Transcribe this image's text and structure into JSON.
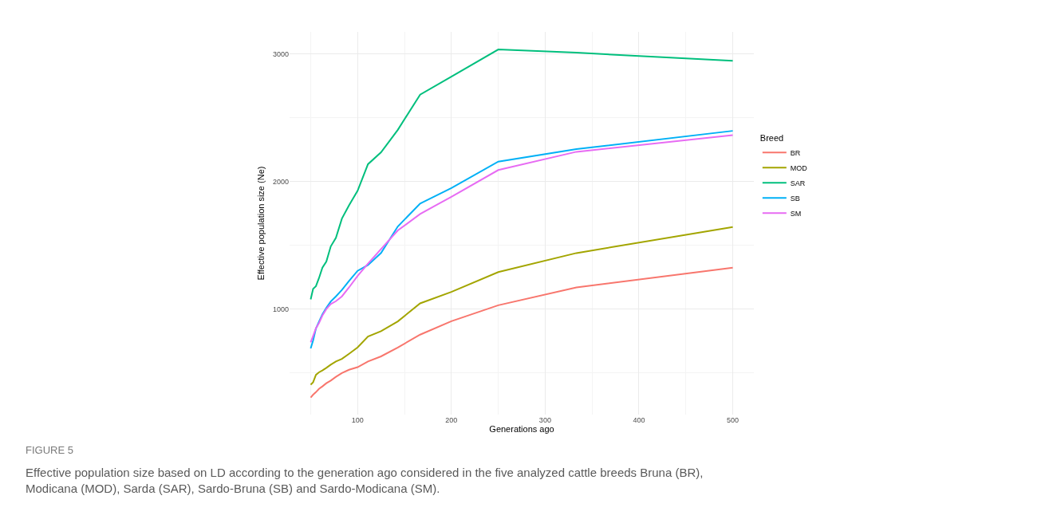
{
  "chart_data": {
    "type": "line",
    "xlabel": "Generations ago",
    "ylabel": "Effective population size (Ne)",
    "legend_title": "Breed",
    "x": [
      50,
      52.6,
      55.6,
      58.8,
      62.5,
      66.7,
      71.4,
      76.9,
      83.3,
      90.9,
      100,
      111.1,
      125,
      142.9,
      166.7,
      200,
      250,
      333.3,
      500
    ],
    "series": [
      {
        "name": "BR",
        "color": "#f8766d",
        "values": [
          308,
          330,
          350,
          375,
          395,
          420,
          440,
          470,
          500,
          525,
          545,
          590,
          630,
          700,
          800,
          905,
          1030,
          1170,
          1325
        ]
      },
      {
        "name": "MOD",
        "color": "#a3a500",
        "values": [
          408,
          427,
          485,
          505,
          520,
          540,
          565,
          590,
          610,
          650,
          700,
          786,
          827,
          904,
          1045,
          1135,
          1290,
          1439,
          1643
        ]
      },
      {
        "name": "SAR",
        "color": "#00bf7d",
        "values": [
          1076,
          1159,
          1180,
          1242,
          1325,
          1373,
          1491,
          1558,
          1709,
          1813,
          1927,
          2135,
          2228,
          2404,
          2680,
          2820,
          3033,
          3008,
          2944
        ]
      },
      {
        "name": "SB",
        "color": "#00b0f6",
        "values": [
          692,
          755,
          848,
          900,
          960,
          1010,
          1060,
          1100,
          1150,
          1220,
          1300,
          1345,
          1440,
          1647,
          1827,
          1948,
          2155,
          2253,
          2396
        ]
      },
      {
        "name": "SM",
        "color": "#e76bf3",
        "values": [
          740,
          790,
          850,
          890,
          950,
          1000,
          1040,
          1062,
          1100,
          1170,
          1260,
          1356,
          1470,
          1616,
          1745,
          1880,
          2089,
          2232,
          2363
        ]
      }
    ],
    "xlim": [
      27.5,
      522.5
    ],
    "xticks": [
      100,
      200,
      300,
      400,
      500
    ],
    "ylim": [
      174,
      3171
    ],
    "yticks": [
      1000,
      2000,
      3000
    ],
    "grid": true,
    "legend": "right",
    "line_style": "solid",
    "marker": "none",
    "annotations": [
      "FIGURE 5",
      "Effective population size based on LD according to the generation ago considered in the five analyzed cattle breeds Bruna (BR), Modicana (MOD), Sarda (SAR), Sardo-Bruna (SB) and Sardo-Modicana (SM)."
    ]
  }
}
